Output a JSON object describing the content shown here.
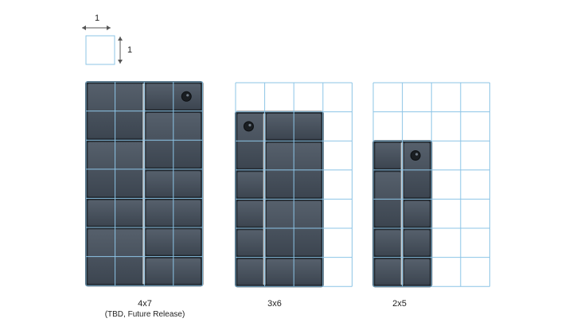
{
  "unit_legend": {
    "width_label": "1",
    "height_label": "1"
  },
  "phones": [
    {
      "id": "4x7",
      "label": "4x7",
      "sublabel": "(TBD, Future Release)",
      "grid_cols": 4,
      "grid_rows": 7,
      "body_cols": 4,
      "body_rows": 7,
      "camera_corner": "top-right"
    },
    {
      "id": "3x6",
      "label": "3x6",
      "sublabel": "",
      "grid_cols": 4,
      "grid_rows": 7,
      "body_cols": 3,
      "body_rows": 6,
      "camera_corner": "top-left"
    },
    {
      "id": "2x5",
      "label": "2x5",
      "sublabel": "",
      "grid_cols": 4,
      "grid_rows": 7,
      "body_cols": 2,
      "body_rows": 5,
      "camera_corner": "top-right"
    }
  ],
  "colors": {
    "grid_line": "#8cc4e6",
    "module_fill": "#46505c",
    "module_edge": "#2b323a",
    "frame": "#1f252b",
    "separator": "#dfe4e8",
    "camera": "#1a1e22",
    "text": "#222222"
  }
}
